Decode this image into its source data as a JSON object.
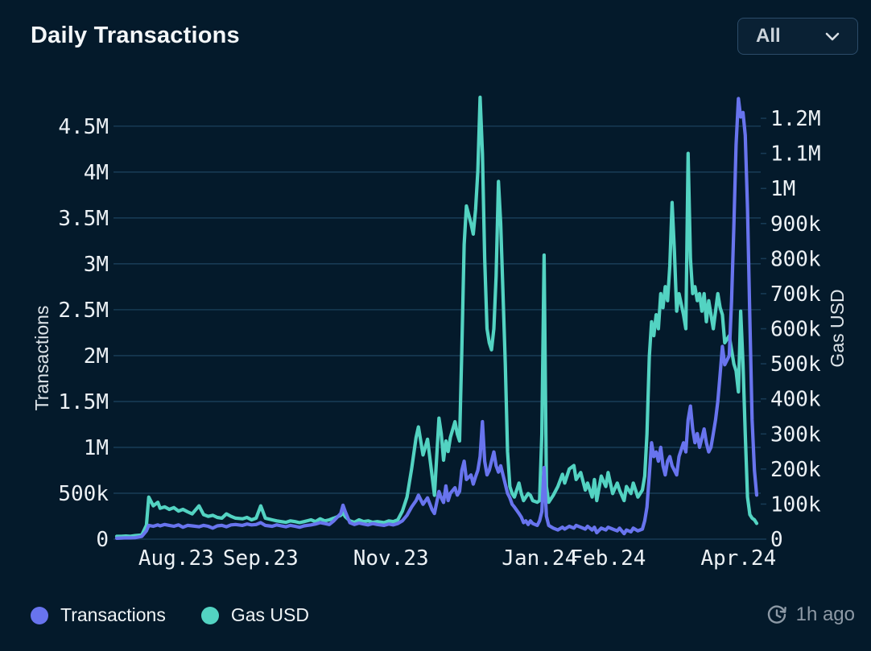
{
  "header": {
    "title": "Daily Transactions",
    "range_selector": {
      "value": "All"
    }
  },
  "footer": {
    "legend": [
      {
        "label": "Transactions",
        "color": "#6874ee"
      },
      {
        "label": "Gas USD",
        "color": "#53d3c2"
      }
    ],
    "updated_label": "1h ago"
  },
  "colors": {
    "background": "#041a2b",
    "gridline": "#173a54",
    "tick_text": "#ecf1f5",
    "axis_name_text": "#dee5ea",
    "transactions_line": "#6874ee",
    "gas_line": "#53d3c2",
    "muted_text": "#8d99a5"
  },
  "chart_data": {
    "type": "line",
    "title": "Daily Transactions",
    "grid": true,
    "legend_position": "bottom",
    "x_unit": "day_index",
    "x_range": [
      0,
      280
    ],
    "x_ticks": [
      {
        "label": "Aug.23",
        "day": 26
      },
      {
        "label": "Sep.23",
        "day": 63
      },
      {
        "label": "Nov.23",
        "day": 120
      },
      {
        "label": "Jan.24",
        "day": 185
      },
      {
        "label": "Feb.24",
        "day": 215
      },
      {
        "label": "Apr.24",
        "day": 272
      }
    ],
    "left_axis": {
      "label": "Transactions",
      "max": 4910000,
      "tick_values": [
        0,
        500000,
        1000000,
        1500000,
        2000000,
        2500000,
        3000000,
        3500000,
        4000000,
        4500000
      ],
      "tick_labels": [
        "0",
        "500k",
        "1M",
        "1.5M",
        "2M",
        "2.5M",
        "3M",
        "3.5M",
        "4M",
        "4.5M"
      ]
    },
    "right_axis": {
      "label": "Gas USD",
      "max": 1285000,
      "tick_values": [
        0,
        100000,
        200000,
        300000,
        400000,
        500000,
        600000,
        700000,
        800000,
        900000,
        1000000,
        1100000,
        1200000
      ],
      "tick_labels": [
        "0",
        "100k",
        "200k",
        "300k",
        "400k",
        "500k",
        "600k",
        "700k",
        "800k",
        "900k",
        "1M",
        "1.1M",
        "1.2M"
      ]
    },
    "series": [
      {
        "name": "Transactions",
        "axis": "left",
        "color": "#6874ee"
      },
      {
        "name": "Gas USD",
        "axis": "right",
        "color": "#53d3c2"
      }
    ],
    "points": [
      [
        0,
        10000,
        8000
      ],
      [
        2,
        12000,
        8000
      ],
      [
        4,
        15000,
        9000
      ],
      [
        6,
        14000,
        8000
      ],
      [
        8,
        16000,
        10000
      ],
      [
        11,
        30000,
        12000
      ],
      [
        13,
        90000,
        40000
      ],
      [
        14,
        150000,
        120000
      ],
      [
        16,
        140000,
        95000
      ],
      [
        18,
        155000,
        105000
      ],
      [
        19,
        145000,
        88000
      ],
      [
        21,
        160000,
        92000
      ],
      [
        23,
        150000,
        85000
      ],
      [
        25,
        140000,
        90000
      ],
      [
        27,
        155000,
        80000
      ],
      [
        29,
        130000,
        85000
      ],
      [
        31,
        150000,
        78000
      ],
      [
        33,
        145000,
        72000
      ],
      [
        36,
        135000,
        95000
      ],
      [
        38,
        150000,
        70000
      ],
      [
        40,
        140000,
        65000
      ],
      [
        42,
        120000,
        68000
      ],
      [
        44,
        145000,
        62000
      ],
      [
        46,
        150000,
        60000
      ],
      [
        48,
        135000,
        72000
      ],
      [
        50,
        155000,
        65000
      ],
      [
        52,
        160000,
        60000
      ],
      [
        55,
        150000,
        58000
      ],
      [
        57,
        165000,
        62000
      ],
      [
        59,
        155000,
        55000
      ],
      [
        61,
        160000,
        60000
      ],
      [
        63,
        180000,
        95000
      ],
      [
        65,
        150000,
        60000
      ],
      [
        68,
        140000,
        55000
      ],
      [
        70,
        155000,
        52000
      ],
      [
        72,
        145000,
        50000
      ],
      [
        74,
        135000,
        48000
      ],
      [
        76,
        150000,
        52000
      ],
      [
        78,
        140000,
        50000
      ],
      [
        80,
        130000,
        47000
      ],
      [
        82,
        145000,
        50000
      ],
      [
        85,
        155000,
        55000
      ],
      [
        87,
        165000,
        50000
      ],
      [
        89,
        180000,
        58000
      ],
      [
        91,
        170000,
        52000
      ],
      [
        93,
        160000,
        55000
      ],
      [
        95,
        200000,
        60000
      ],
      [
        98,
        280000,
        68000
      ],
      [
        99,
        370000,
        75000
      ],
      [
        100,
        300000,
        64000
      ],
      [
        102,
        180000,
        52000
      ],
      [
        104,
        160000,
        48000
      ],
      [
        106,
        175000,
        55000
      ],
      [
        108,
        165000,
        50000
      ],
      [
        110,
        155000,
        52000
      ],
      [
        112,
        170000,
        48000
      ],
      [
        114,
        160000,
        50000
      ],
      [
        117,
        150000,
        47000
      ],
      [
        119,
        165000,
        52000
      ],
      [
        121,
        155000,
        50000
      ],
      [
        123,
        170000,
        55000
      ],
      [
        125,
        200000,
        80000
      ],
      [
        127,
        260000,
        120000
      ],
      [
        129,
        350000,
        200000
      ],
      [
        131,
        420000,
        290000
      ],
      [
        132,
        480000,
        320000
      ],
      [
        134,
        380000,
        240000
      ],
      [
        136,
        450000,
        285000
      ],
      [
        138,
        320000,
        180000
      ],
      [
        139,
        280000,
        125000
      ],
      [
        141,
        520000,
        345000
      ],
      [
        142,
        450000,
        300000
      ],
      [
        143,
        400000,
        225000
      ],
      [
        144,
        580000,
        280000
      ],
      [
        145,
        420000,
        250000
      ],
      [
        146,
        500000,
        290000
      ],
      [
        148,
        560000,
        335000
      ],
      [
        149,
        480000,
        300000
      ],
      [
        150,
        520000,
        280000
      ],
      [
        151,
        750000,
        540000
      ],
      [
        152,
        850000,
        840000
      ],
      [
        153,
        650000,
        950000
      ],
      [
        155,
        700000,
        900000
      ],
      [
        156,
        600000,
        870000
      ],
      [
        157,
        680000,
        940000
      ],
      [
        158,
        750000,
        1050000
      ],
      [
        159,
        900000,
        1260000
      ],
      [
        160,
        1280000,
        1100000
      ],
      [
        161,
        850000,
        800000
      ],
      [
        162,
        700000,
        600000
      ],
      [
        163,
        750000,
        560000
      ],
      [
        164,
        850000,
        540000
      ],
      [
        165,
        950000,
        600000
      ],
      [
        166,
        800000,
        750000
      ],
      [
        167,
        730000,
        1020000
      ],
      [
        168,
        800000,
        900000
      ],
      [
        170,
        600000,
        500000
      ],
      [
        171,
        500000,
        250000
      ],
      [
        172,
        450000,
        150000
      ],
      [
        173,
        380000,
        130000
      ],
      [
        174,
        350000,
        120000
      ],
      [
        176,
        280000,
        160000
      ],
      [
        177,
        240000,
        130000
      ],
      [
        178,
        180000,
        110000
      ],
      [
        179,
        200000,
        120000
      ],
      [
        180,
        160000,
        130000
      ],
      [
        181,
        200000,
        125000
      ],
      [
        182,
        170000,
        110000
      ],
      [
        184,
        150000,
        105000
      ],
      [
        185,
        200000,
        110000
      ],
      [
        186,
        300000,
        300000
      ],
      [
        187,
        780000,
        810000
      ],
      [
        188,
        250000,
        150000
      ],
      [
        189,
        150000,
        105000
      ],
      [
        191,
        120000,
        125000
      ],
      [
        193,
        100000,
        150000
      ],
      [
        195,
        130000,
        185000
      ],
      [
        196,
        110000,
        160000
      ],
      [
        198,
        140000,
        200000
      ],
      [
        200,
        120000,
        210000
      ],
      [
        201,
        150000,
        170000
      ],
      [
        203,
        130000,
        190000
      ],
      [
        205,
        110000,
        140000
      ],
      [
        206,
        140000,
        160000
      ],
      [
        208,
        100000,
        120000
      ],
      [
        209,
        130000,
        170000
      ],
      [
        210,
        70000,
        110000
      ],
      [
        212,
        120000,
        180000
      ],
      [
        214,
        100000,
        150000
      ],
      [
        215,
        130000,
        190000
      ],
      [
        217,
        110000,
        130000
      ],
      [
        219,
        90000,
        160000
      ],
      [
        220,
        120000,
        140000
      ],
      [
        222,
        60000,
        110000
      ],
      [
        223,
        100000,
        150000
      ],
      [
        225,
        80000,
        130000
      ],
      [
        226,
        120000,
        160000
      ],
      [
        228,
        90000,
        120000
      ],
      [
        230,
        110000,
        140000
      ],
      [
        231,
        200000,
        180000
      ],
      [
        232,
        350000,
        300000
      ],
      [
        233,
        700000,
        520000
      ],
      [
        234,
        1050000,
        620000
      ],
      [
        235,
        900000,
        580000
      ],
      [
        236,
        950000,
        640000
      ],
      [
        237,
        850000,
        600000
      ],
      [
        238,
        1000000,
        700000
      ],
      [
        239,
        800000,
        660000
      ],
      [
        240,
        700000,
        720000
      ],
      [
        241,
        850000,
        680000
      ],
      [
        242,
        900000,
        780000
      ],
      [
        243,
        800000,
        960000
      ],
      [
        244,
        750000,
        820000
      ],
      [
        245,
        700000,
        650000
      ],
      [
        246,
        900000,
        700000
      ],
      [
        248,
        1050000,
        640000
      ],
      [
        249,
        950000,
        600000
      ],
      [
        250,
        1300000,
        1100000
      ],
      [
        251,
        1450000,
        800000
      ],
      [
        252,
        1200000,
        700000
      ],
      [
        253,
        1050000,
        720000
      ],
      [
        254,
        1150000,
        680000
      ],
      [
        255,
        1000000,
        700000
      ],
      [
        256,
        1100000,
        650000
      ],
      [
        257,
        1200000,
        700000
      ],
      [
        258,
        1050000,
        620000
      ],
      [
        259,
        950000,
        680000
      ],
      [
        260,
        1000000,
        640000
      ],
      [
        261,
        1150000,
        600000
      ],
      [
        262,
        1300000,
        650000
      ],
      [
        263,
        1500000,
        700000
      ],
      [
        264,
        1800000,
        660000
      ],
      [
        265,
        2100000,
        640000
      ],
      [
        266,
        1900000,
        560000
      ],
      [
        268,
        2000000,
        580000
      ],
      [
        269,
        2600000,
        540000
      ],
      [
        270,
        3400000,
        500000
      ],
      [
        271,
        4300000,
        480000
      ],
      [
        272,
        4800000,
        420000
      ],
      [
        273,
        4600000,
        650000
      ],
      [
        274,
        4650000,
        500000
      ],
      [
        275,
        4400000,
        300000
      ],
      [
        276,
        3600000,
        120000
      ],
      [
        277,
        2400000,
        70000
      ],
      [
        278,
        1300000,
        60000
      ],
      [
        279,
        750000,
        55000
      ],
      [
        280,
        480000,
        45000
      ]
    ]
  }
}
